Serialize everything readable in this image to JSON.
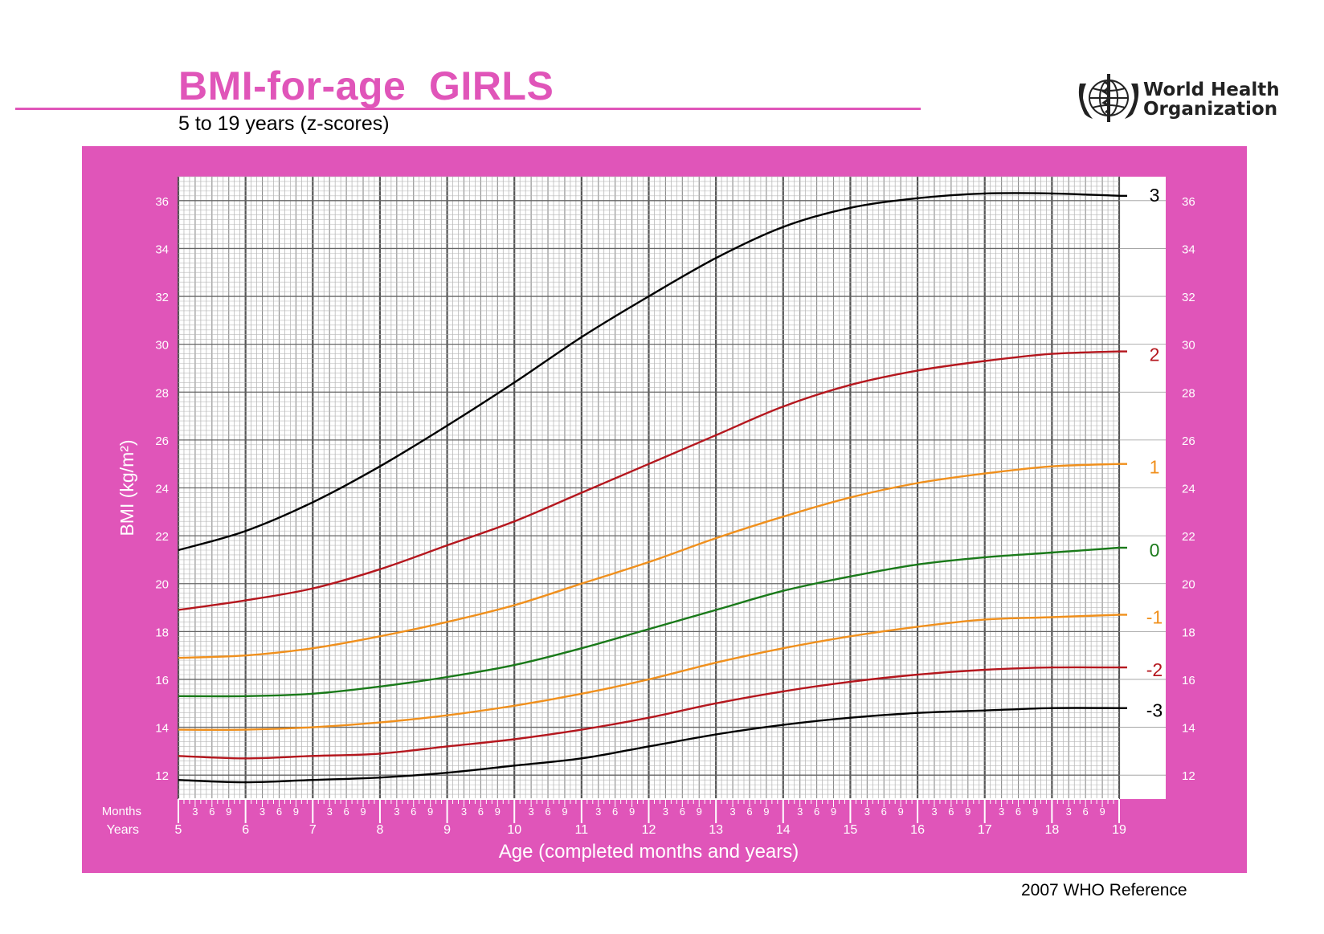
{
  "header": {
    "title": "BMI-for-age  GIRLS",
    "subtitle": "5 to 19 years (z-scores)",
    "org_line1": "World Health",
    "org_line2": "Organization",
    "logo_icon": "who-emblem-icon"
  },
  "footer": {
    "reference": "2007 WHO Reference"
  },
  "colors": {
    "accent": "#e055b9",
    "sd3": "#000000",
    "sd2": "#b5171e",
    "sd1": "#f0901d",
    "median": "#1a7a1a"
  },
  "chart_data": {
    "type": "line",
    "title": "BMI-for-age  GIRLS",
    "subtitle": "5 to 19 years (z-scores)",
    "xlabel": "Age (completed months and years)",
    "ylabel": "BMI (kg/m²)",
    "row_label_months": "Months",
    "row_label_years": "Years",
    "month_ticks": [
      "3",
      "6",
      "9"
    ],
    "xlim": [
      5,
      19
    ],
    "ylim": [
      11,
      37
    ],
    "grid": true,
    "x_ticks": [
      5,
      6,
      7,
      8,
      9,
      10,
      11,
      12,
      13,
      14,
      15,
      16,
      17,
      18,
      19
    ],
    "y_ticks": [
      12,
      14,
      16,
      18,
      20,
      22,
      24,
      26,
      28,
      30,
      32,
      34,
      36
    ],
    "x": [
      5,
      6,
      7,
      8,
      9,
      10,
      11,
      12,
      13,
      14,
      15,
      16,
      17,
      18,
      19
    ],
    "series": [
      {
        "name": "3",
        "color": "#000000",
        "values": [
          21.4,
          22.2,
          23.4,
          24.9,
          26.6,
          28.4,
          30.3,
          32.0,
          33.6,
          34.9,
          35.7,
          36.1,
          36.3,
          36.3,
          36.2
        ]
      },
      {
        "name": "2",
        "color": "#b5171e",
        "values": [
          18.9,
          19.3,
          19.8,
          20.6,
          21.6,
          22.6,
          23.8,
          25.0,
          26.2,
          27.4,
          28.3,
          28.9,
          29.3,
          29.6,
          29.7
        ]
      },
      {
        "name": "1",
        "color": "#f0901d",
        "values": [
          16.9,
          17.0,
          17.3,
          17.8,
          18.4,
          19.1,
          20.0,
          20.9,
          21.9,
          22.8,
          23.6,
          24.2,
          24.6,
          24.9,
          25.0
        ]
      },
      {
        "name": "0",
        "color": "#1a7a1a",
        "values": [
          15.3,
          15.3,
          15.4,
          15.7,
          16.1,
          16.6,
          17.3,
          18.1,
          18.9,
          19.7,
          20.3,
          20.8,
          21.1,
          21.3,
          21.5
        ]
      },
      {
        "name": "-1",
        "color": "#f0901d",
        "values": [
          13.9,
          13.9,
          14.0,
          14.2,
          14.5,
          14.9,
          15.4,
          16.0,
          16.7,
          17.3,
          17.8,
          18.2,
          18.5,
          18.6,
          18.7
        ]
      },
      {
        "name": "-2",
        "color": "#b5171e",
        "values": [
          12.8,
          12.7,
          12.8,
          12.9,
          13.2,
          13.5,
          13.9,
          14.4,
          15.0,
          15.5,
          15.9,
          16.2,
          16.4,
          16.5,
          16.5
        ]
      },
      {
        "name": "-3",
        "color": "#000000",
        "values": [
          11.8,
          11.7,
          11.8,
          11.9,
          12.1,
          12.4,
          12.7,
          13.2,
          13.7,
          14.1,
          14.4,
          14.6,
          14.7,
          14.8,
          14.8
        ]
      }
    ]
  }
}
